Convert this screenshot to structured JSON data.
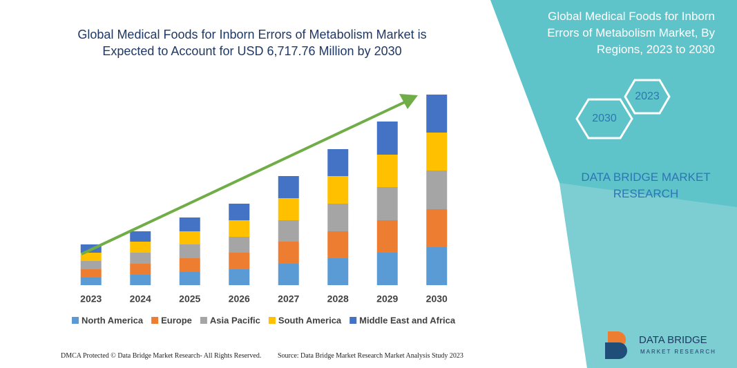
{
  "chart_data": {
    "type": "stacked_bar",
    "title": "Global Medical Foods for Inborn Errors of Metabolism Market is Expected to Account for USD 6,717.76 Million by 2030",
    "categories": [
      "2023",
      "2024",
      "2025",
      "2026",
      "2027",
      "2028",
      "2029",
      "2030"
    ],
    "series": [
      {
        "name": "North America",
        "color": "#5b9bd5",
        "values": [
          11,
          15,
          19,
          23,
          31,
          39,
          47,
          55
        ]
      },
      {
        "name": "Europe",
        "color": "#ed7d31",
        "values": [
          12,
          16,
          20,
          24,
          32,
          39,
          47,
          55
        ]
      },
      {
        "name": "Asia Pacific",
        "color": "#a5a5a5",
        "values": [
          12,
          16,
          20,
          23,
          31,
          40,
          48,
          56
        ]
      },
      {
        "name": "South America",
        "color": "#ffc000",
        "values": [
          12,
          16,
          19,
          24,
          32,
          40,
          47,
          55
        ]
      },
      {
        "name": "Middle East and Africa",
        "color": "#4472c4",
        "values": [
          12,
          15,
          20,
          24,
          32,
          39,
          48,
          55
        ]
      }
    ],
    "ylim": [
      0,
      300
    ]
  },
  "sidebar": {
    "title": "Global Medical Foods for Inborn Errors of Metabolism Market, By Regions, 2023 to 2030",
    "hex_labels": [
      "2023",
      "2030"
    ],
    "brand": "DATA BRIDGE MARKET RESEARCH"
  },
  "logo": {
    "name": "DATA BRIDGE",
    "tagline": "MARKET RESEARCH"
  },
  "footer": {
    "left": "DMCA Protected © Data Bridge Market Research-  All Rights Reserved.",
    "right": "Source: Data Bridge Market Research  Market Analysis Study 2023"
  }
}
